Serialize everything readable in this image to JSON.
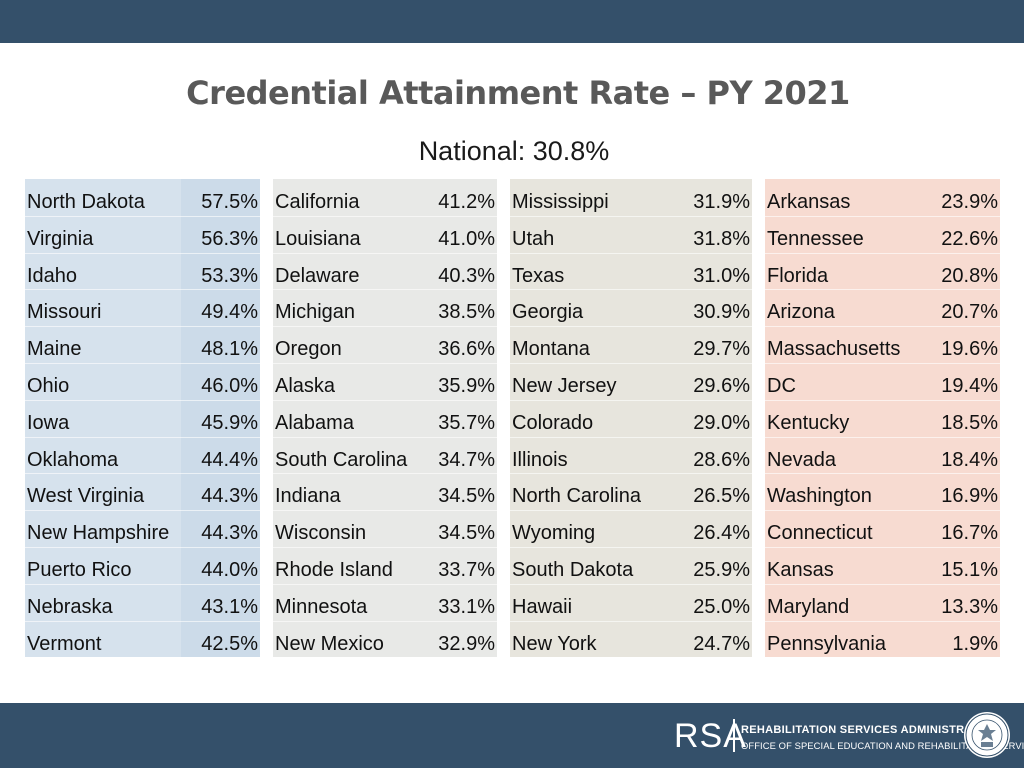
{
  "title": "Credential Attainment Rate – PY 2021",
  "subtitle": "National: 30.8%",
  "columns": [
    {
      "rows": [
        {
          "state": "North Dakota",
          "rate": "57.5%"
        },
        {
          "state": "Virginia",
          "rate": "56.3%"
        },
        {
          "state": "Idaho",
          "rate": "53.3%"
        },
        {
          "state": "Missouri",
          "rate": "49.4%"
        },
        {
          "state": "Maine",
          "rate": "48.1%"
        },
        {
          "state": "Ohio",
          "rate": "46.0%"
        },
        {
          "state": "Iowa",
          "rate": "45.9%"
        },
        {
          "state": "Oklahoma",
          "rate": "44.4%"
        },
        {
          "state": "West Virginia",
          "rate": "44.3%"
        },
        {
          "state": "New Hampshire",
          "rate": "44.3%"
        },
        {
          "state": "Puerto Rico",
          "rate": "44.0%"
        },
        {
          "state": "Nebraska",
          "rate": "43.1%"
        },
        {
          "state": "Vermont",
          "rate": "42.5%"
        }
      ]
    },
    {
      "rows": [
        {
          "state": "California",
          "rate": "41.2%"
        },
        {
          "state": "Louisiana",
          "rate": "41.0%"
        },
        {
          "state": "Delaware",
          "rate": "40.3%"
        },
        {
          "state": "Michigan",
          "rate": "38.5%"
        },
        {
          "state": "Oregon",
          "rate": "36.6%"
        },
        {
          "state": "Alaska",
          "rate": "35.9%"
        },
        {
          "state": "Alabama",
          "rate": "35.7%"
        },
        {
          "state": "South Carolina",
          "rate": "34.7%"
        },
        {
          "state": "Indiana",
          "rate": "34.5%"
        },
        {
          "state": "Wisconsin",
          "rate": "34.5%"
        },
        {
          "state": "Rhode Island",
          "rate": "33.7%"
        },
        {
          "state": "Minnesota",
          "rate": "33.1%"
        },
        {
          "state": "New Mexico",
          "rate": "32.9%"
        }
      ]
    },
    {
      "rows": [
        {
          "state": "Mississippi",
          "rate": "31.9%"
        },
        {
          "state": "Utah",
          "rate": "31.8%"
        },
        {
          "state": "Texas",
          "rate": "31.0%"
        },
        {
          "state": "Georgia",
          "rate": "30.9%"
        },
        {
          "state": "Montana",
          "rate": "29.7%"
        },
        {
          "state": "New Jersey",
          "rate": "29.6%"
        },
        {
          "state": "Colorado",
          "rate": "29.0%"
        },
        {
          "state": "Illinois",
          "rate": "28.6%"
        },
        {
          "state": "North Carolina",
          "rate": "26.5%"
        },
        {
          "state": "Wyoming",
          "rate": "26.4%"
        },
        {
          "state": "South Dakota",
          "rate": "25.9%"
        },
        {
          "state": "Hawaii",
          "rate": "25.0%"
        },
        {
          "state": "New York",
          "rate": "24.7%"
        }
      ]
    },
    {
      "rows": [
        {
          "state": "Arkansas",
          "rate": "23.9%"
        },
        {
          "state": "Tennessee",
          "rate": "22.6%"
        },
        {
          "state": "Florida",
          "rate": "20.8%"
        },
        {
          "state": "Arizona",
          "rate": "20.7%"
        },
        {
          "state": "Massachusetts",
          "rate": "19.6%"
        },
        {
          "state": "DC",
          "rate": "19.4%"
        },
        {
          "state": "Kentucky",
          "rate": "18.5%"
        },
        {
          "state": "Nevada",
          "rate": "18.4%"
        },
        {
          "state": "Washington",
          "rate": "16.9%"
        },
        {
          "state": "Connecticut",
          "rate": "16.7%"
        },
        {
          "state": "Kansas",
          "rate": "15.1%"
        },
        {
          "state": "Maryland",
          "rate": "13.3%"
        },
        {
          "state": "Pennsylvania",
          "rate": "1.9%"
        }
      ]
    }
  ],
  "footer": {
    "logo": "RSA",
    "agency": "REHABILITATION SERVICES ADMINISTRATION",
    "office": "OFFICE OF SPECIAL EDUCATION AND REHABILITATIVE SERVICES",
    "seal_icon": "department-seal-icon"
  },
  "colors": {
    "bar": "#34506a",
    "col1": "#d6e2ed",
    "col2": "#e8e9e7",
    "col3": "#e7e5dd",
    "col4": "#f7dbd1"
  }
}
